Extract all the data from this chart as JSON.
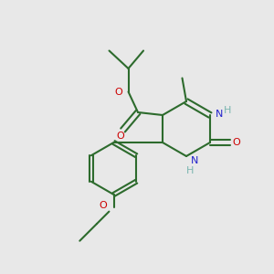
{
  "bg_color": "#e8e8e8",
  "bond_color": "#2d6b2d",
  "n_color": "#2222cc",
  "o_color": "#cc0000",
  "h_color": "#7ab5af",
  "lw": 1.5,
  "fs": 8.0,
  "figsize": [
    3.0,
    3.0
  ],
  "dpi": 100,
  "xlim": [
    0,
    10
  ],
  "ylim": [
    0,
    10
  ]
}
